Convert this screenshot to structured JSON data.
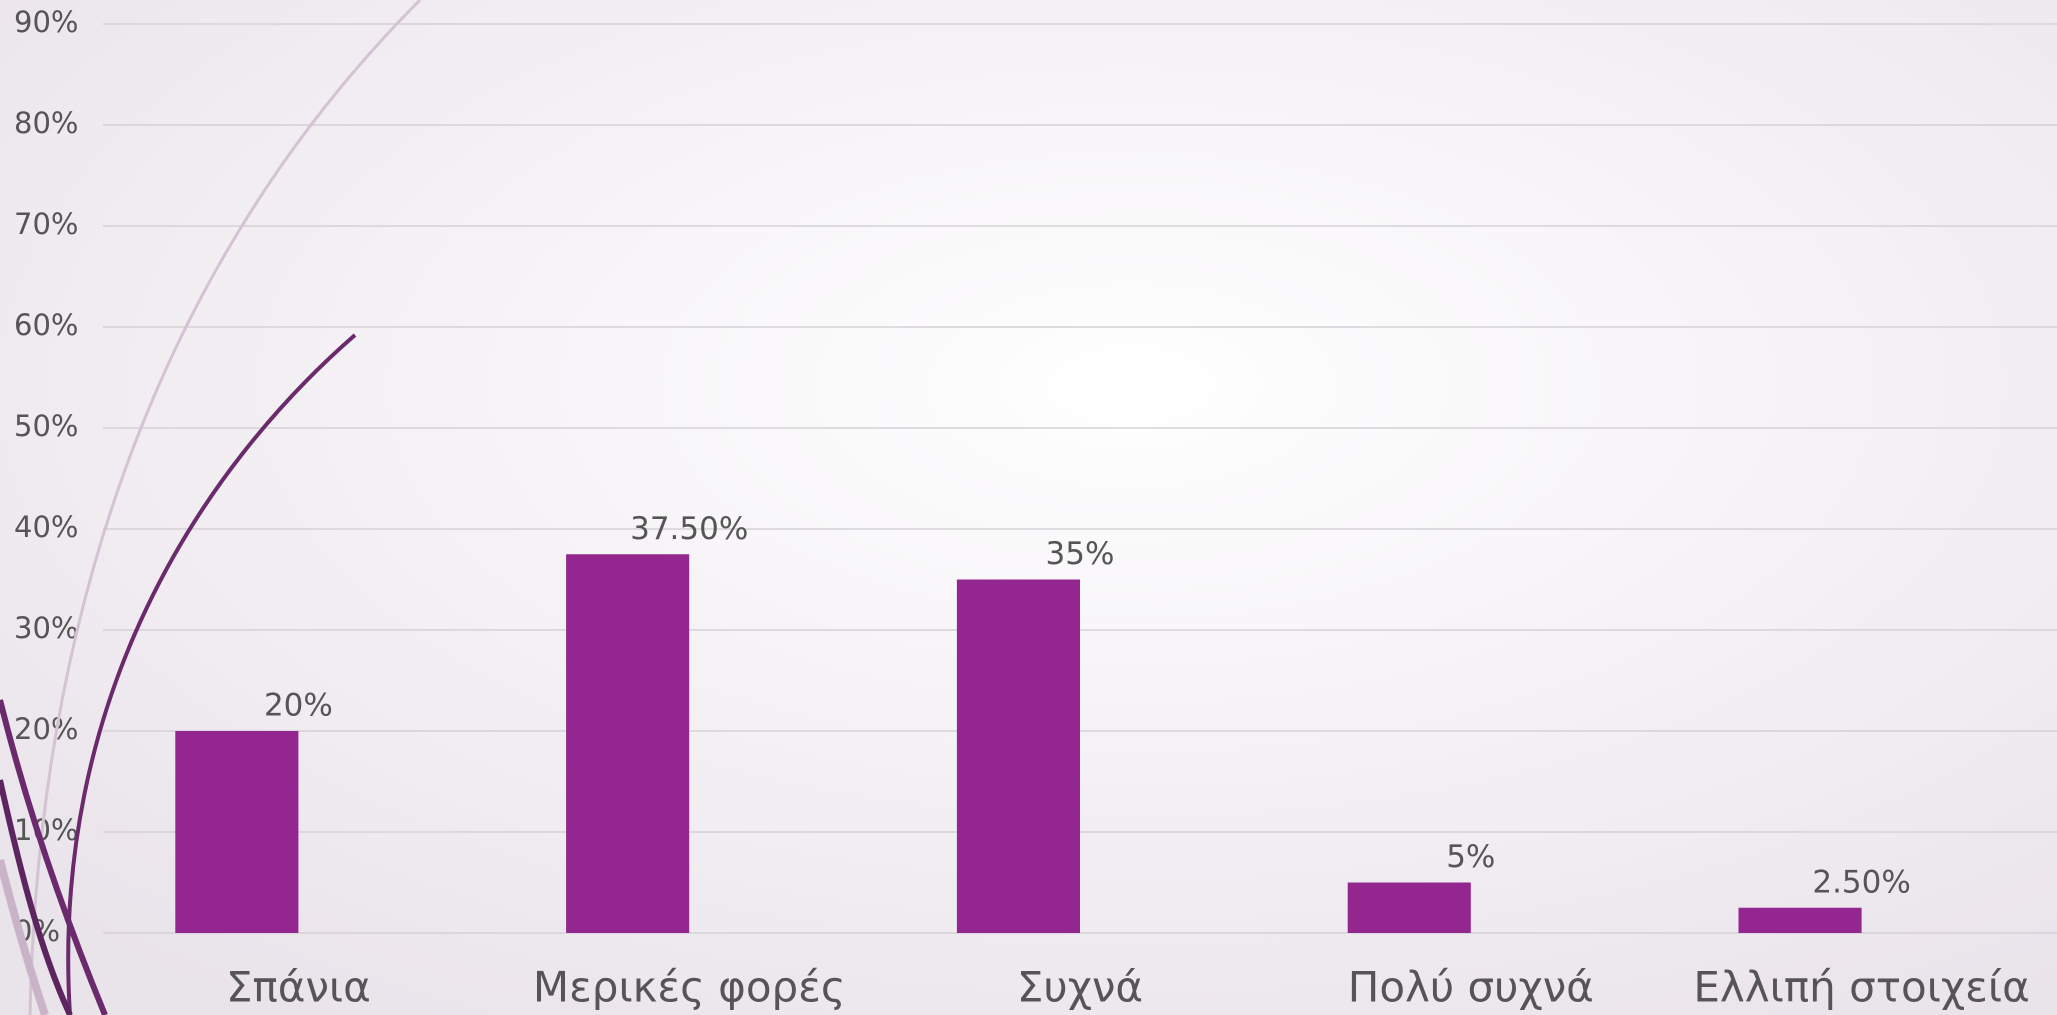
{
  "chart_data": {
    "type": "bar",
    "categories": [
      "Σπάνια",
      "Μερικές φορές",
      "Συχνά",
      "Πολύ συχνά",
      "Ελλιπή στοιχεία"
    ],
    "values": [
      20,
      37.5,
      35,
      5,
      2.5
    ],
    "value_labels": [
      "20%",
      "37.50%",
      "35%",
      "5%",
      "2.50%"
    ],
    "color": "#93278f",
    "ylim": [
      0,
      90
    ],
    "yticks": [
      {
        "value": 0,
        "label": "0%"
      },
      {
        "value": 10,
        "label": "10%"
      },
      {
        "value": 20,
        "label": "20%"
      },
      {
        "value": 30,
        "label": "30%"
      },
      {
        "value": 40,
        "label": "40%"
      },
      {
        "value": 50,
        "label": "50%"
      },
      {
        "value": 60,
        "label": "60%"
      },
      {
        "value": 70,
        "label": "70%"
      },
      {
        "value": 80,
        "label": "80%"
      },
      {
        "value": 90,
        "label": "90%"
      }
    ],
    "grid": true
  }
}
